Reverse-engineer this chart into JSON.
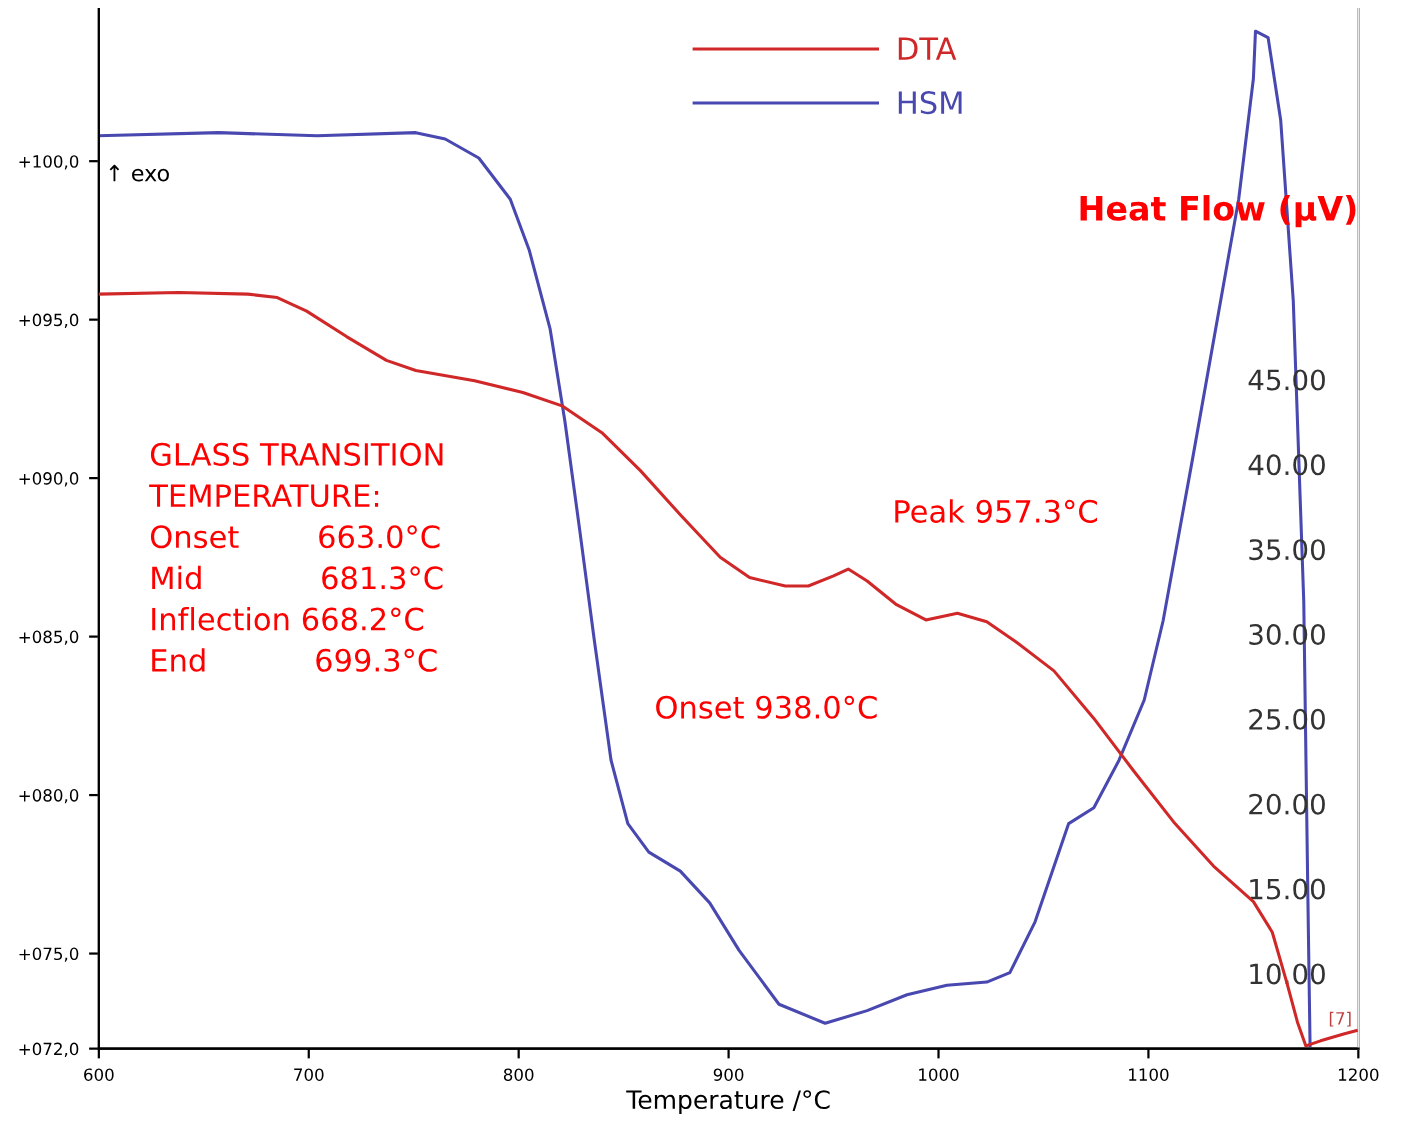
{
  "chart_data": {
    "type": "line",
    "xlabel": "Temperature /°C",
    "y2label": "Heat Flow (µV)",
    "x": [
      600,
      657,
      704,
      751,
      765,
      781,
      796,
      805,
      815,
      822,
      829,
      836,
      844,
      852,
      862,
      877,
      891,
      905,
      924,
      946,
      966,
      985,
      1004,
      1023,
      1034,
      1046,
      1062,
      1074,
      1086,
      1098,
      1107,
      1121,
      1132,
      1143,
      1150,
      1151,
      1157,
      1163,
      1169,
      1174,
      1176,
      1177
    ],
    "series": [
      {
        "name": "DTA",
        "color": "#d02828",
        "axis": "y2",
        "x": [
          600,
          638,
          671,
          685,
          699,
          718,
          737,
          751,
          779,
          802,
          821,
          840,
          858,
          877,
          896,
          910,
          927,
          938,
          950,
          957,
          966,
          980,
          994,
          1009,
          1023,
          1037,
          1055,
          1074,
          1093,
          1112,
          1131,
          1150,
          1159,
          1166,
          1171,
          1175,
          1182,
          1193,
          1199
        ],
        "values": [
          50.2,
          50.3,
          50.2,
          50.0,
          49.2,
          47.7,
          46.3,
          45.7,
          45.1,
          44.4,
          43.6,
          42.0,
          39.8,
          37.2,
          34.7,
          33.5,
          33.0,
          33.0,
          33.6,
          34.0,
          33.3,
          31.9,
          31.0,
          31.4,
          30.9,
          29.7,
          28.0,
          25.2,
          22.1,
          19.1,
          16.5,
          14.4,
          12.6,
          9.6,
          7.3,
          5.9,
          6.2,
          6.6,
          6.8
        ]
      },
      {
        "name": "HSM",
        "color": "#4848b0",
        "values": [
          100.8,
          100.9,
          100.8,
          100.9,
          100.7,
          100.1,
          98.8,
          97.2,
          94.7,
          91.8,
          88.4,
          84.9,
          81.1,
          79.1,
          78.2,
          77.6,
          76.6,
          75.1,
          73.4,
          72.8,
          73.2,
          73.7,
          74.0,
          74.1,
          74.4,
          76.0,
          79.1,
          79.6,
          81.1,
          83.0,
          85.5,
          90.6,
          94.7,
          98.8,
          102.6,
          104.1,
          103.9,
          101.3,
          95.6,
          86.1,
          76.6,
          72.1
        ]
      }
    ],
    "xlim": [
      600,
      1200
    ],
    "xticks": [
      600,
      700,
      800,
      900,
      1000,
      1100,
      1200
    ],
    "ylim": [
      72,
      104.8
    ],
    "yticks": [
      {
        "value": 72,
        "label": "+072,0"
      },
      {
        "value": 75,
        "label": "+075,0"
      },
      {
        "value": 80,
        "label": "+080,0"
      },
      {
        "value": 85,
        "label": "+085,0"
      },
      {
        "value": 90,
        "label": "+090,0"
      },
      {
        "value": 95,
        "label": "+095,0"
      },
      {
        "value": 100,
        "label": "+100,0"
      }
    ],
    "y2lim": [
      5.74,
      67
    ],
    "y2ticks": [
      {
        "value": 10,
        "label": "10.00"
      },
      {
        "value": 15,
        "label": "15.00"
      },
      {
        "value": 20,
        "label": "20.00"
      },
      {
        "value": 25,
        "label": "25.00"
      },
      {
        "value": 30,
        "label": "30.00"
      },
      {
        "value": 35,
        "label": "35.00"
      },
      {
        "value": 40,
        "label": "40.00"
      },
      {
        "value": 45,
        "label": "45.00"
      }
    ],
    "annotations": [
      "↑ exo",
      "GLASS TRANSITION\nTEMPERATURE:\nOnset        663.0°C\nMid            681.3°C\nInflection 668.2°C\nEnd           699.3°C",
      "Peak 957.3°C",
      "Onset 938.0°C",
      "[7]"
    ],
    "legend": "top",
    "grid": false,
    "marker": "none",
    "line_style": "solid"
  }
}
